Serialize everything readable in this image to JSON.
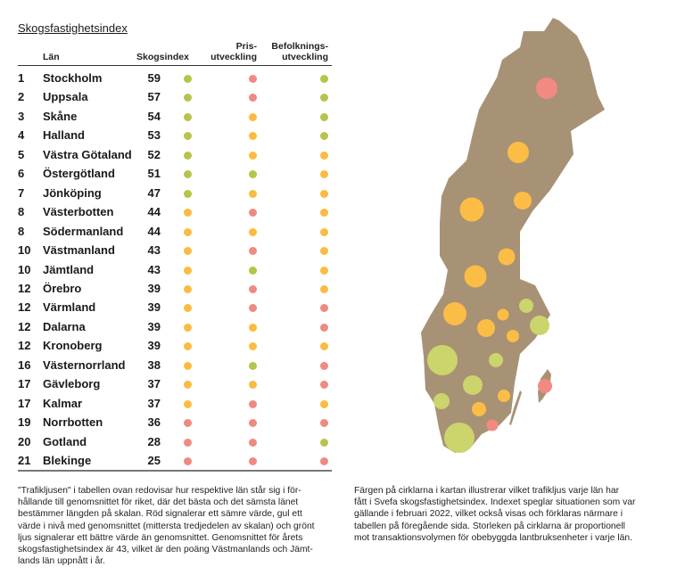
{
  "chart_data": {
    "type": "table",
    "title": "Skogsfastighetsindex",
    "columns": [
      "Län",
      "Skogsindex",
      "Pris-utveckling",
      "Befolknings-utveckling"
    ],
    "rows": [
      {
        "rank": "1",
        "lan": "Stockholm",
        "index": "59",
        "s": [
          "green",
          "red",
          "green"
        ]
      },
      {
        "rank": "2",
        "lan": "Uppsala",
        "index": "57",
        "s": [
          "green",
          "red",
          "green"
        ]
      },
      {
        "rank": "3",
        "lan": "Skåne",
        "index": "54",
        "s": [
          "green",
          "yellow",
          "green"
        ]
      },
      {
        "rank": "4",
        "lan": "Halland",
        "index": "53",
        "s": [
          "green",
          "yellow",
          "green"
        ]
      },
      {
        "rank": "5",
        "lan": "Västra Götaland",
        "index": "52",
        "s": [
          "green",
          "yellow",
          "yellow"
        ]
      },
      {
        "rank": "6",
        "lan": "Östergötland",
        "index": "51",
        "s": [
          "green",
          "green",
          "yellow"
        ]
      },
      {
        "rank": "7",
        "lan": "Jönköping",
        "index": "47",
        "s": [
          "green",
          "yellow",
          "yellow"
        ]
      },
      {
        "rank": "8",
        "lan": "Västerbotten",
        "index": "44",
        "s": [
          "yellow",
          "red",
          "yellow"
        ]
      },
      {
        "rank": "8",
        "lan": "Södermanland",
        "index": "44",
        "s": [
          "yellow",
          "yellow",
          "yellow"
        ]
      },
      {
        "rank": "10",
        "lan": "Västmanland",
        "index": "43",
        "s": [
          "yellow",
          "red",
          "yellow"
        ]
      },
      {
        "rank": "10",
        "lan": "Jämtland",
        "index": "43",
        "s": [
          "yellow",
          "green",
          "yellow"
        ]
      },
      {
        "rank": "12",
        "lan": "Örebro",
        "index": "39",
        "s": [
          "yellow",
          "red",
          "yellow"
        ]
      },
      {
        "rank": "12",
        "lan": "Värmland",
        "index": "39",
        "s": [
          "yellow",
          "red",
          "red"
        ]
      },
      {
        "rank": "12",
        "lan": "Dalarna",
        "index": "39",
        "s": [
          "yellow",
          "yellow",
          "red"
        ]
      },
      {
        "rank": "12",
        "lan": "Kronoberg",
        "index": "39",
        "s": [
          "yellow",
          "yellow",
          "yellow"
        ]
      },
      {
        "rank": "16",
        "lan": "Västernorrland",
        "index": "38",
        "s": [
          "yellow",
          "green",
          "red"
        ]
      },
      {
        "rank": "17",
        "lan": "Gävleborg",
        "index": "37",
        "s": [
          "yellow",
          "yellow",
          "red"
        ]
      },
      {
        "rank": "17",
        "lan": "Kalmar",
        "index": "37",
        "s": [
          "yellow",
          "red",
          "yellow"
        ]
      },
      {
        "rank": "19",
        "lan": "Norrbotten",
        "index": "36",
        "s": [
          "red",
          "red",
          "red"
        ]
      },
      {
        "rank": "20",
        "lan": "Gotland",
        "index": "28",
        "s": [
          "red",
          "red",
          "green"
        ]
      },
      {
        "rank": "21",
        "lan": "Blekinge",
        "index": "25",
        "s": [
          "red",
          "red",
          "red"
        ]
      }
    ]
  },
  "header": {
    "lan": "Län",
    "index": "Skogsindex",
    "pris1": "Pris-",
    "pris2": "utveckling",
    "bef1": "Befolknings-",
    "bef2": "utveckling"
  },
  "colors": {
    "green": "#b8c34b",
    "yellow": "#fbbb40",
    "red": "#ef8a82",
    "map": "#a89275",
    "map_green": "#ccd46c",
    "map_yellow": "#fbbd45",
    "map_red": "#f28a82"
  },
  "map_circles": [
    "red",
    "yellow",
    "yellow",
    "yellow",
    "yellow",
    "yellow",
    "green",
    "yellow",
    "yellow",
    "yellow",
    "green",
    "yellow",
    "green",
    "green",
    "green",
    "red",
    "green",
    "yellow",
    "yellow",
    "red",
    "green"
  ],
  "text": {
    "left": [
      "\"Trafikljusen\" i tabellen ovan redovisar hur respektive län står sig i för-",
      "hållande till genomsnittet för riket, där det bästa och det sämsta länet",
      "bestämmer längden på skalan. Röd signalerar ett sämre värde, gul ett",
      "värde i nivå med genomsnittet (mittersta tredjedelen av skalan) och grönt",
      "ljus signalerar ett bättre värde än genomsnittet. Genomsnittet för årets",
      "skogsfastighetsindex är 43, vilket är den poäng Västmanlands och Jämt-",
      "lands län uppnått i år."
    ],
    "right": [
      "Färgen på cirklarna i kartan illustrerar vilket trafikljus varje län har",
      "fått i Svefa skogsfastighetsindex. Indexet speglar situationen som var",
      "gällande i februari 2022, vilket också visas och förklaras närmare i",
      "tabellen på föregående sida. Storleken på cirklarna är proportionell",
      "mot transaktionsvolymen för obebyggda lantbruksenheter i varje län."
    ]
  }
}
